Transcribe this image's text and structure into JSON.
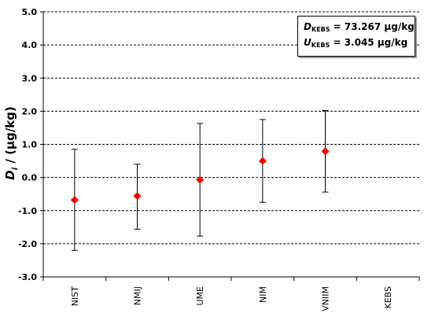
{
  "chart_data": {
    "type": "scatter",
    "categories": [
      "NIST",
      "NMIJ",
      "UME",
      "NIM",
      "VNIIM",
      "KEBS"
    ],
    "values": [
      -0.68,
      -0.56,
      -0.07,
      0.5,
      0.79,
      null
    ],
    "error_upper": [
      0.85,
      0.4,
      1.63,
      1.75,
      2.02,
      null
    ],
    "error_lower": [
      -2.2,
      -1.56,
      -1.77,
      -0.75,
      -0.44,
      null
    ],
    "ylim": [
      -3.0,
      5.0
    ],
    "yticks": [
      "5.0",
      "4.0",
      "3.0",
      "2.0",
      "1.0",
      "0.0",
      "-1.0",
      "-2.0",
      "-3.0"
    ],
    "ylabel_symbol": "D",
    "ylabel_sub": "i",
    "ylabel_rest": " / (µg/kg)",
    "grid": "horizontal-dashed",
    "marker_color": "#ff0000",
    "annotation": {
      "line1_symbol": "D",
      "line1_sub": "KEBS",
      "line1_value": " = 73.267 µg/kg",
      "line2_symbol": "U",
      "line2_sub": "KEBS",
      "line2_value": " = 3.045 µg/kg"
    }
  }
}
